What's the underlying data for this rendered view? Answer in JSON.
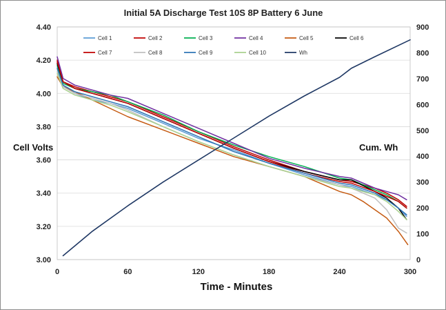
{
  "chart_data": {
    "type": "line",
    "title": "Initial 5A Discharge Test 10S 8P Battery 6 June",
    "xlabel": "Time - Minutes",
    "ylabel": "Cell Volts",
    "y2label": "Cum. Wh",
    "xlim": [
      0,
      300
    ],
    "ylim": [
      3.0,
      4.4
    ],
    "y2lim": [
      0,
      900
    ],
    "xticks": [
      0,
      60,
      120,
      180,
      240,
      300
    ],
    "yticks": [
      "3.00",
      "3.20",
      "3.40",
      "3.60",
      "3.80",
      "4.00",
      "4.20",
      "4.40"
    ],
    "y2ticks": [
      0,
      100,
      200,
      300,
      400,
      500,
      600,
      700,
      800,
      900
    ],
    "grid": "horizontal",
    "legend_position": "top",
    "series": [
      {
        "name": "Cell 1",
        "color": "#5b9bd5",
        "axis": "left",
        "x": [
          0,
          5,
          15,
          30,
          45,
          60,
          90,
          120,
          150,
          180,
          210,
          240,
          250,
          270,
          280,
          290,
          297
        ],
        "y": [
          4.16,
          4.05,
          4.0,
          3.96,
          3.94,
          3.91,
          3.82,
          3.73,
          3.66,
          3.58,
          3.51,
          3.45,
          3.44,
          3.39,
          3.36,
          3.31,
          3.26
        ]
      },
      {
        "name": "Cell 2",
        "color": "#c00000",
        "axis": "left",
        "x": [
          0,
          5,
          15,
          30,
          45,
          60,
          90,
          120,
          150,
          180,
          210,
          240,
          250,
          270,
          280,
          290,
          297
        ],
        "y": [
          4.2,
          4.07,
          4.04,
          4.01,
          3.98,
          3.95,
          3.86,
          3.77,
          3.68,
          3.6,
          3.53,
          3.48,
          3.47,
          3.43,
          3.4,
          3.36,
          3.32
        ]
      },
      {
        "name": "Cell 3",
        "color": "#00b050",
        "axis": "left",
        "x": [
          0,
          5,
          15,
          30,
          45,
          60,
          90,
          120,
          150,
          180,
          210,
          240,
          250,
          270,
          280,
          290,
          297
        ],
        "y": [
          4.17,
          4.06,
          4.03,
          4.01,
          3.99,
          3.95,
          3.87,
          3.77,
          3.69,
          3.62,
          3.56,
          3.49,
          3.48,
          3.42,
          3.39,
          3.35,
          3.31
        ]
      },
      {
        "name": "Cell 4",
        "color": "#7030a0",
        "axis": "left",
        "x": [
          0,
          5,
          15,
          30,
          45,
          60,
          90,
          120,
          150,
          180,
          210,
          240,
          250,
          270,
          280,
          290,
          297
        ],
        "y": [
          4.22,
          4.09,
          4.05,
          4.02,
          3.99,
          3.97,
          3.88,
          3.79,
          3.7,
          3.61,
          3.55,
          3.5,
          3.49,
          3.43,
          3.41,
          3.39,
          3.36
        ]
      },
      {
        "name": "Cell 5",
        "color": "#c55a11",
        "axis": "left",
        "x": [
          0,
          5,
          15,
          30,
          45,
          60,
          90,
          120,
          150,
          180,
          210,
          240,
          250,
          260,
          270,
          280,
          290,
          298
        ],
        "y": [
          4.1,
          4.04,
          4.01,
          3.96,
          3.91,
          3.86,
          3.78,
          3.7,
          3.62,
          3.56,
          3.5,
          3.41,
          3.39,
          3.35,
          3.3,
          3.25,
          3.17,
          3.09
        ]
      },
      {
        "name": "Cell 6",
        "color": "#000000",
        "axis": "left",
        "x": [
          0,
          5,
          15,
          30,
          45,
          60,
          90,
          120,
          150,
          180,
          210,
          240,
          250,
          270,
          280,
          290,
          297
        ],
        "y": [
          4.18,
          4.07,
          4.03,
          4.0,
          3.97,
          3.94,
          3.85,
          3.76,
          3.67,
          3.59,
          3.53,
          3.48,
          3.48,
          3.41,
          3.37,
          3.31,
          3.24
        ]
      },
      {
        "name": "Cell 7",
        "color": "#c00000",
        "axis": "left",
        "x": [
          0,
          5,
          15,
          30,
          45,
          60,
          90,
          120,
          150,
          180,
          210,
          240,
          250,
          270,
          280,
          290,
          297
        ],
        "y": [
          4.19,
          4.07,
          4.03,
          4.0,
          3.97,
          3.94,
          3.85,
          3.76,
          3.67,
          3.59,
          3.52,
          3.47,
          3.46,
          3.41,
          3.38,
          3.35,
          3.31
        ]
      },
      {
        "name": "Cell 8",
        "color": "#bfbfbf",
        "axis": "left",
        "x": [
          0,
          5,
          15,
          30,
          45,
          60,
          90,
          120,
          150,
          180,
          210,
          240,
          250,
          270,
          280,
          290,
          297
        ],
        "y": [
          4.13,
          4.04,
          4.0,
          3.97,
          3.94,
          3.9,
          3.8,
          3.71,
          3.63,
          3.56,
          3.5,
          3.45,
          3.43,
          3.37,
          3.3,
          3.19,
          3.16
        ]
      },
      {
        "name": "Cell 9",
        "color": "#2e75b6",
        "axis": "left",
        "x": [
          0,
          5,
          15,
          30,
          45,
          60,
          90,
          120,
          150,
          180,
          210,
          240,
          250,
          270,
          280,
          290,
          297
        ],
        "y": [
          4.15,
          4.05,
          4.01,
          3.98,
          3.95,
          3.92,
          3.83,
          3.74,
          3.65,
          3.58,
          3.52,
          3.46,
          3.45,
          3.4,
          3.36,
          3.31,
          3.27
        ]
      },
      {
        "name": "Cell 10",
        "color": "#a9d18e",
        "axis": "left",
        "x": [
          0,
          5,
          15,
          30,
          45,
          60,
          90,
          120,
          150,
          180,
          210,
          240,
          250,
          270,
          280,
          290,
          297
        ],
        "y": [
          4.12,
          4.03,
          3.99,
          3.96,
          3.93,
          3.89,
          3.8,
          3.71,
          3.63,
          3.56,
          3.5,
          3.44,
          3.43,
          3.39,
          3.35,
          3.29,
          3.24
        ]
      },
      {
        "name": "Wh",
        "color": "#1f3864",
        "axis": "right",
        "x": [
          5,
          30,
          60,
          90,
          120,
          150,
          180,
          210,
          240,
          250,
          270,
          300
        ],
        "y": [
          15,
          110,
          208,
          300,
          385,
          470,
          555,
          633,
          705,
          740,
          785,
          850
        ]
      }
    ]
  }
}
